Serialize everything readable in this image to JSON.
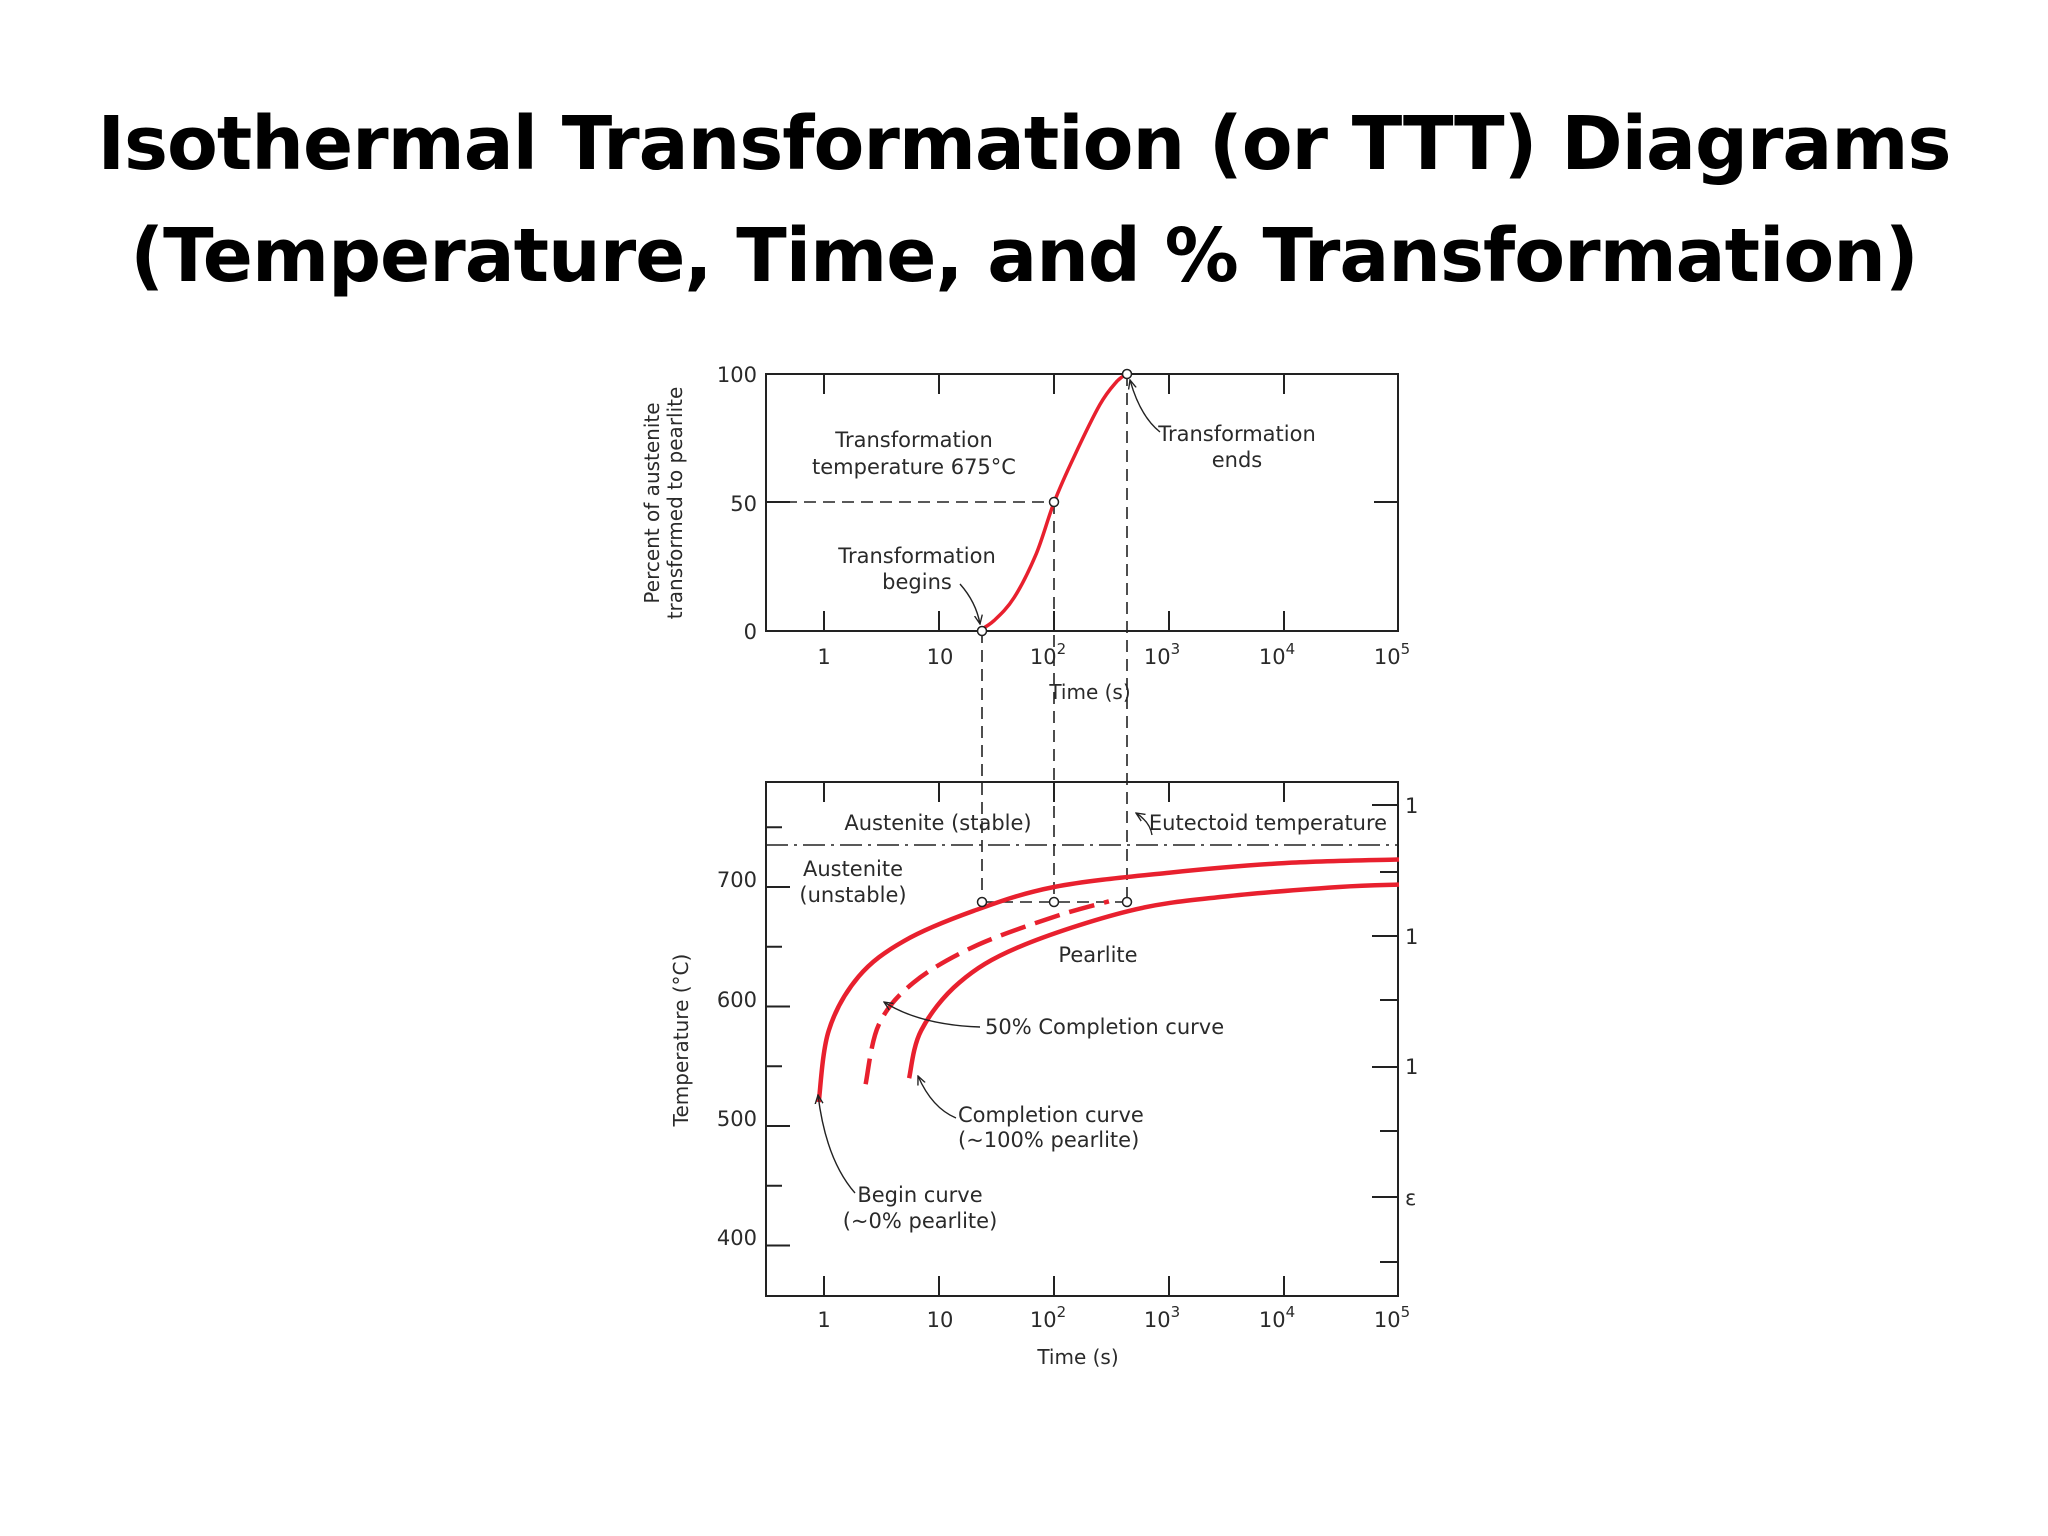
{
  "title": {
    "line1": "Isothermal Transformation (or TTT) Diagrams",
    "line2": "(Temperature, Time, and % Transformation)"
  },
  "colors": {
    "curve": "#e8202e",
    "line": "#222222"
  },
  "chart_data": [
    {
      "type": "line",
      "xlabel": "Time (s)",
      "ylabel": "Percent of austenite transformed to pearlite",
      "x_scale": "log",
      "xlim": [
        0.5,
        100000
      ],
      "ylim": [
        0,
        100
      ],
      "x_ticks": [
        {
          "base": "1",
          "exp": ""
        },
        {
          "base": "10",
          "exp": ""
        },
        {
          "base": "10",
          "exp": "2"
        },
        {
          "base": "10",
          "exp": "3"
        },
        {
          "base": "10",
          "exp": "4"
        },
        {
          "base": "10",
          "exp": "5"
        }
      ],
      "y_ticks": [
        "100",
        "50",
        "0"
      ],
      "series": [
        {
          "x": [
            22,
            30,
            45,
            70,
            100,
            150,
            250,
            350,
            430
          ],
          "y": [
            0,
            4,
            13,
            30,
            50,
            68,
            88,
            97,
            100
          ]
        }
      ],
      "annotations": {
        "temperature_line1": "Transformation",
        "temperature_line2": "temperature 675°C",
        "begins_line1": "Transformation",
        "begins_line2": "begins",
        "ends_line1": "Transformation",
        "ends_line2": "ends"
      }
    },
    {
      "type": "line",
      "xlabel": "Time (s)",
      "ylabel": "Temperature (°C)",
      "x_scale": "log",
      "xlim": [
        0.5,
        100000
      ],
      "ylim": [
        350,
        780
      ],
      "y_ticks": [
        "700",
        "600",
        "500",
        "400"
      ],
      "right_edge_ticks": [
        "1",
        "1",
        "1",
        "ε"
      ],
      "eutectoid_temperature": 727,
      "isothermal_temperature": 675,
      "series": [
        {
          "name": "Begin curve",
          "x": [
            0.9,
            1.1,
            2,
            5,
            20,
            100,
            1000,
            10000,
            100000
          ],
          "y": [
            520,
            580,
            625,
            655,
            680,
            700,
            712,
            720,
            723
          ]
        },
        {
          "name": "50% Completion curve",
          "x": [
            2.3,
            3,
            6,
            20,
            100,
            300
          ],
          "y": [
            535,
            585,
            620,
            650,
            675,
            688
          ]
        },
        {
          "name": "Completion curve",
          "x": [
            5.5,
            7,
            15,
            50,
            450,
            3000,
            30000,
            100000
          ],
          "y": [
            540,
            580,
            620,
            650,
            680,
            692,
            700,
            702
          ]
        }
      ],
      "annotations": {
        "austenite_stable": "Austenite (stable)",
        "eutectoid": "Eutectoid temperature",
        "austenite_unstable_line1": "Austenite",
        "austenite_unstable_line2": "(unstable)",
        "pearlite": "Pearlite",
        "completion_50": "50% Completion curve",
        "completion_line1": "Completion curve",
        "completion_line2": "(~100% pearlite)",
        "begin_line1": "Begin curve",
        "begin_line2": "(~0% pearlite)"
      }
    }
  ]
}
